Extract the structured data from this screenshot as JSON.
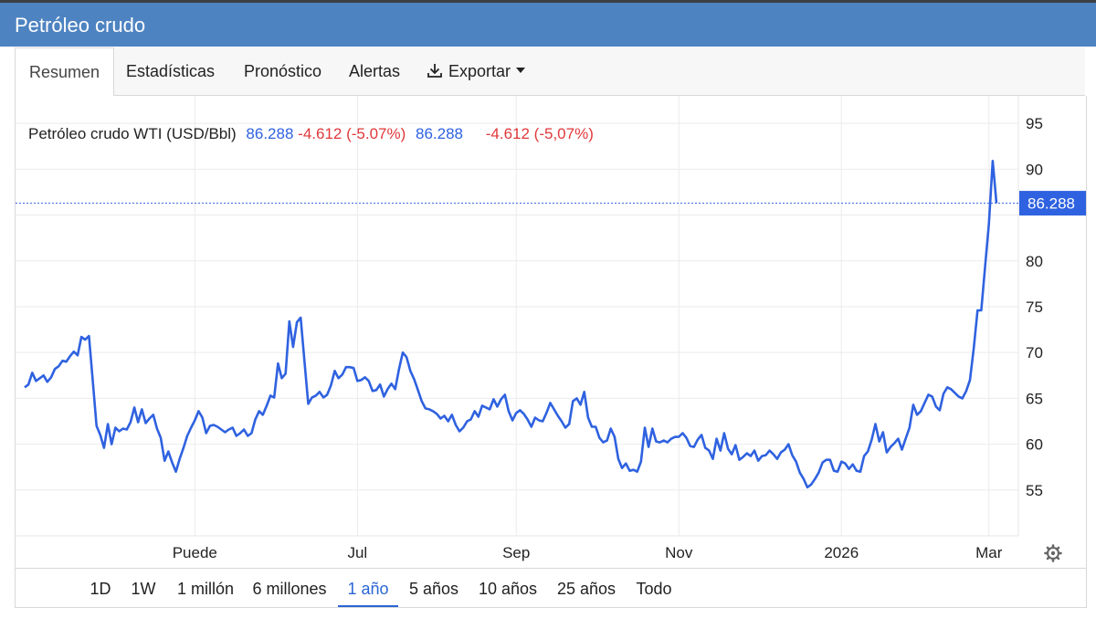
{
  "window": {
    "title": "Petróleo crudo"
  },
  "tabs": [
    {
      "label": "Resumen",
      "active": true
    },
    {
      "label": "Estadísticas",
      "active": false
    },
    {
      "label": "Pronóstico",
      "active": false
    },
    {
      "label": "Alertas",
      "active": false
    },
    {
      "label": "Exportar",
      "active": false
    }
  ],
  "legend": {
    "name": "Petróleo crudo WTI (USD/Bbl)",
    "value": "86.288",
    "change": "-4.612 (-5.07%)",
    "value2": "86.288",
    "change2": "-4.612 (-5,07%)"
  },
  "price_tag": "86.288",
  "ranges": [
    {
      "label": "1D",
      "active": false
    },
    {
      "label": "1W",
      "active": false
    },
    {
      "label": "1 millón",
      "active": false
    },
    {
      "label": "6 millones",
      "active": false
    },
    {
      "label": "1 año",
      "active": true
    },
    {
      "label": "5 años",
      "active": false
    },
    {
      "label": "10 años",
      "active": false
    },
    {
      "label": "25 años",
      "active": false
    },
    {
      "label": "Todo",
      "active": false
    }
  ],
  "colors": {
    "header": "#4e83c1",
    "line": "#2f62e0",
    "up": "#2f62e0",
    "down": "#e0383a",
    "tag": "#2f62e0"
  },
  "icons": {
    "export": "download-icon",
    "dropdown": "caret-down-icon",
    "settings": "gear-icon"
  },
  "chart_data": {
    "type": "line",
    "ylim": [
      50,
      98
    ],
    "yticks": [
      55,
      60,
      65,
      70,
      75,
      80,
      85,
      90,
      95
    ],
    "ytick_labels": [
      "55",
      "60",
      "65",
      "70",
      "75",
      "80",
      "",
      "90",
      "95"
    ],
    "xticks": [
      {
        "label": "Puede",
        "index": 45
      },
      {
        "label": "Jul",
        "index": 88
      },
      {
        "label": "Sep",
        "index": 130
      },
      {
        "label": "Nov",
        "index": 173
      },
      {
        "label": "2026",
        "index": 216
      },
      {
        "label": "Mar",
        "index": 255
      }
    ],
    "last_value": 86.288,
    "grid": true,
    "series": [
      {
        "name": "Petróleo crudo WTI (USD/Bbl)",
        "values": [
          66.2,
          66.5,
          67.8,
          66.9,
          67.2,
          67.5,
          66.8,
          67.3,
          68.2,
          68.5,
          69.1,
          69.0,
          69.6,
          70.1,
          69.7,
          71.7,
          71.4,
          71.8,
          67.0,
          62.0,
          61.0,
          59.6,
          62.2,
          60.0,
          61.8,
          61.4,
          61.7,
          61.6,
          62.4,
          64.0,
          62.4,
          63.8,
          62.3,
          62.8,
          63.2,
          61.7,
          60.7,
          58.2,
          59.2,
          58.0,
          57.0,
          58.4,
          59.6,
          60.9,
          61.8,
          62.6,
          63.6,
          62.9,
          61.2,
          62.0,
          62.1,
          61.9,
          61.6,
          61.3,
          61.6,
          61.8,
          60.9,
          61.2,
          61.6,
          60.9,
          61.2,
          62.7,
          63.6,
          63.2,
          64.2,
          65.3,
          65.1,
          68.8,
          67.2,
          67.7,
          73.4,
          70.6,
          73.3,
          73.8,
          69.0,
          64.4,
          65.1,
          65.3,
          65.7,
          65.1,
          65.4,
          66.4,
          68.0,
          67.2,
          67.6,
          68.4,
          68.4,
          68.3,
          66.9,
          67.0,
          67.3,
          66.9,
          65.8,
          65.9,
          66.5,
          65.2,
          66.0,
          66.6,
          66.0,
          68.2,
          70.0,
          69.5,
          68.0,
          67.1,
          65.9,
          64.7,
          63.9,
          63.8,
          63.6,
          63.3,
          62.8,
          63.1,
          62.5,
          63.2,
          62.1,
          61.4,
          61.8,
          62.5,
          62.7,
          63.6,
          63.0,
          64.2,
          64.0,
          63.8,
          64.9,
          64.1,
          64.9,
          65.4,
          63.6,
          62.6,
          63.4,
          63.7,
          63.3,
          62.7,
          61.9,
          62.9,
          62.6,
          62.5,
          63.4,
          64.5,
          63.8,
          63.1,
          62.5,
          61.8,
          62.2,
          64.7,
          65.0,
          64.3,
          65.7,
          62.9,
          61.9,
          61.9,
          60.7,
          60.2,
          60.4,
          61.7,
          60.8,
          58.4,
          57.4,
          57.9,
          57.1,
          57.2,
          57.0,
          58.1,
          61.8,
          59.7,
          61.7,
          60.3,
          60.2,
          60.4,
          60.2,
          60.6,
          60.8,
          60.8,
          61.2,
          60.7,
          59.8,
          59.7,
          60.5,
          61.0,
          59.6,
          59.3,
          58.4,
          60.6,
          59.3,
          61.2,
          59.5,
          58.9,
          59.9,
          58.3,
          58.6,
          59.0,
          58.7,
          59.3,
          58.2,
          58.7,
          58.8,
          59.3,
          58.9,
          58.4,
          59.1,
          59.4,
          60.0,
          58.8,
          58.1,
          56.9,
          56.2,
          55.3,
          55.6,
          56.2,
          56.9,
          58.0,
          58.3,
          58.3,
          57.1,
          57.0,
          58.1,
          57.9,
          57.3,
          57.8,
          57.1,
          57.0,
          58.7,
          59.2,
          60.5,
          62.2,
          60.3,
          61.3,
          59.1,
          59.7,
          60.1,
          60.6,
          59.4,
          60.6,
          61.8,
          64.3,
          63.2,
          63.6,
          64.5,
          65.4,
          65.2,
          64.1,
          63.7,
          65.5,
          66.2,
          66.0,
          65.6,
          65.2,
          65.0,
          65.8,
          67.0,
          70.5,
          74.6,
          74.6,
          79.4,
          84.0,
          90.9,
          86.3
        ]
      }
    ]
  }
}
